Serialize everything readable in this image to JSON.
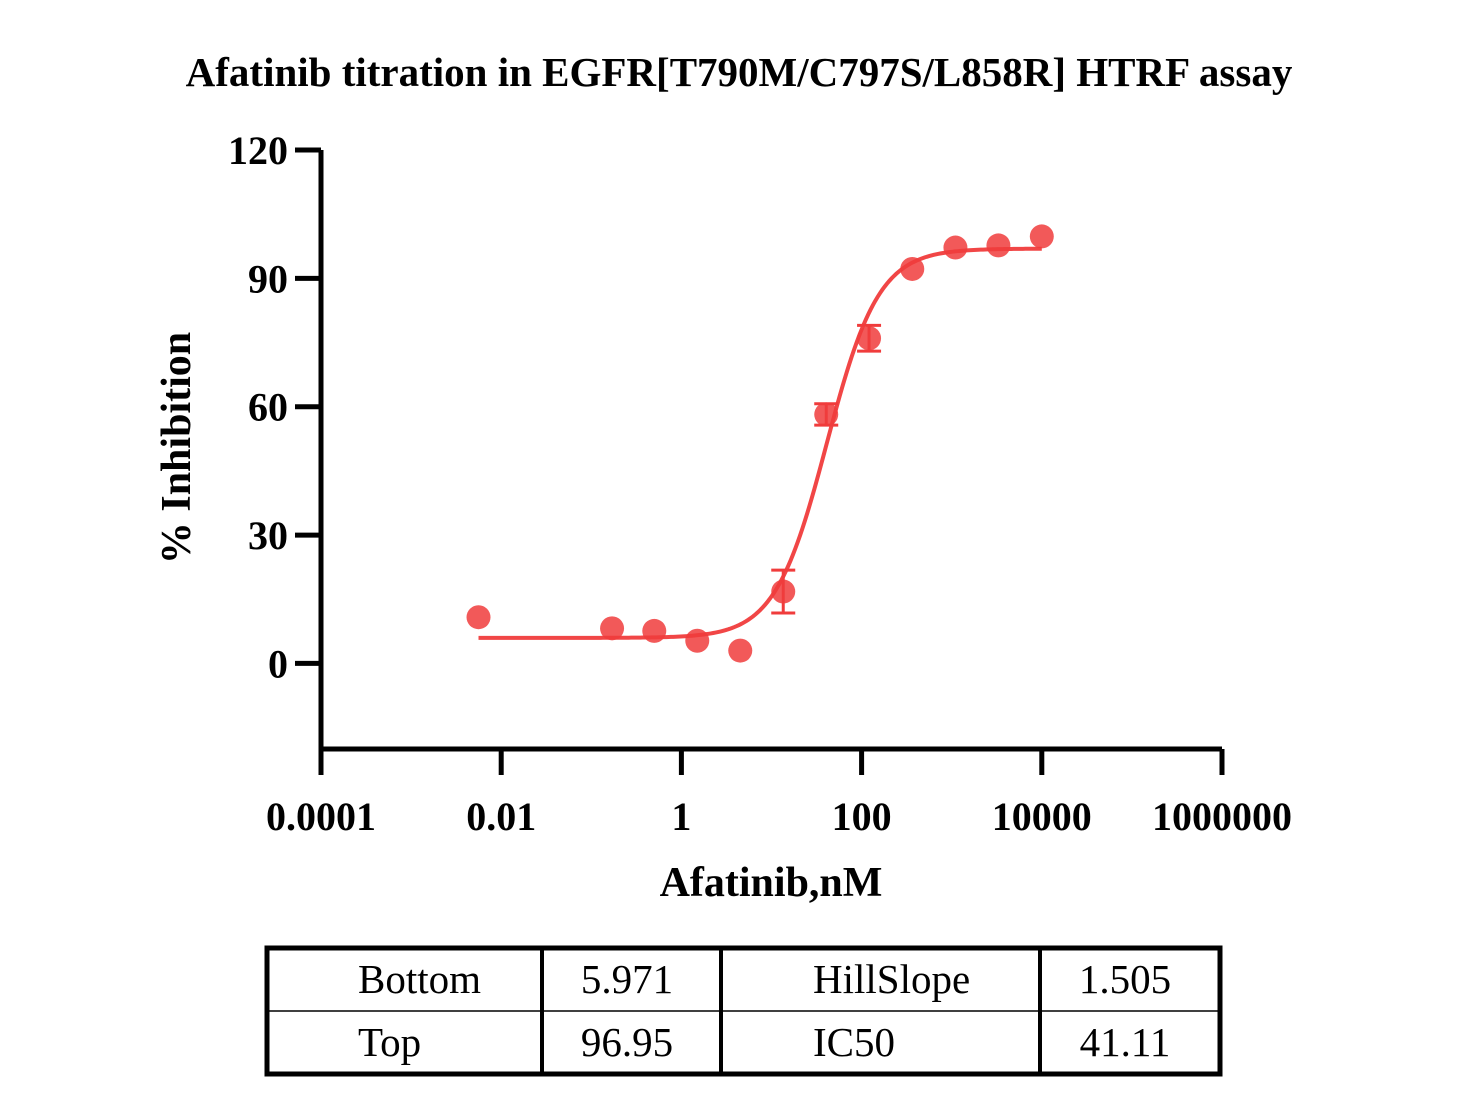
{
  "chart_data": {
    "type": "scatter",
    "title": "Afatinib titration in EGFR[T790M/C797S/L858R] HTRF assay",
    "xlabel": "Afatinib,nM",
    "ylabel": "% Inhibition",
    "x_scale": "log",
    "xlim": [
      0.0001,
      1000000
    ],
    "ylim": [
      -20,
      120
    ],
    "x_ticks": [
      0.0001,
      0.01,
      1,
      100,
      10000,
      1000000
    ],
    "x_tick_labels": [
      "0.0001",
      "0.01",
      "1",
      "100",
      "10000",
      "1000000"
    ],
    "y_ticks": [
      0,
      30,
      60,
      90,
      120
    ],
    "y_tick_labels": [
      "0",
      "30",
      "60",
      "90",
      "120"
    ],
    "grid": false,
    "colors": {
      "series": "#f03c3c",
      "axis": "#000000"
    },
    "series": [
      {
        "points": [
          {
            "x": 0.0056,
            "y": 10.8,
            "err": 0
          },
          {
            "x": 0.17,
            "y": 8.2,
            "err": 0
          },
          {
            "x": 0.5,
            "y": 7.6,
            "err": 0
          },
          {
            "x": 1.5,
            "y": 5.3,
            "err": 0
          },
          {
            "x": 4.5,
            "y": 3.0,
            "err": 0
          },
          {
            "x": 13.5,
            "y": 16.8,
            "err": 5.0
          },
          {
            "x": 40.5,
            "y": 58.2,
            "err": 2.5
          },
          {
            "x": 121,
            "y": 76.0,
            "err": 3.0
          },
          {
            "x": 365,
            "y": 92.2,
            "err": 0
          },
          {
            "x": 1100,
            "y": 97.2,
            "err": 0
          },
          {
            "x": 3300,
            "y": 97.7,
            "err": 0
          },
          {
            "x": 10000,
            "y": 99.8,
            "err": 0
          }
        ],
        "fit": {
          "model": "four-parameter logistic",
          "bottom": 5.971,
          "top": 96.95,
          "hillslope": 1.505,
          "ic50": 41.11,
          "x_range": [
            0.0056,
            10000
          ]
        }
      }
    ],
    "table": {
      "rows": [
        [
          "Bottom",
          "5.971",
          "HillSlope",
          "1.505"
        ],
        [
          "Top",
          "96.95",
          "IC50",
          "41.11"
        ]
      ]
    }
  }
}
